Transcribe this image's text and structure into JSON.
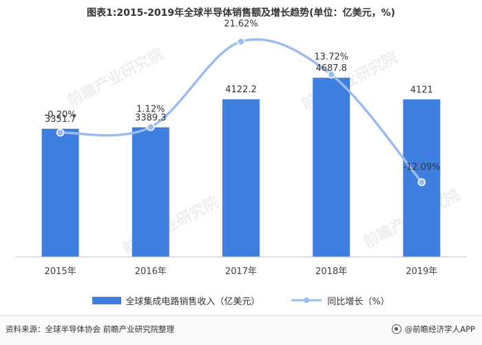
{
  "title": "图表1:2015-2019年全球半导体销售额及增长趋势(单位：亿美元，%)",
  "chart_data": {
    "type": "bar",
    "categories": [
      "2015年",
      "2016年",
      "2017年",
      "2018年",
      "2019年"
    ],
    "series": [
      {
        "name": "全球集成电路销售收入（亿美元）",
        "kind": "bar",
        "values": [
          3351.7,
          3389.3,
          4122.2,
          4687.8,
          4121
        ],
        "labels": [
          "3351.7",
          "3389.3",
          "4122.2",
          "4687.8",
          "4121"
        ],
        "color": "#3f7fe0"
      },
      {
        "name": "同比增长（%）",
        "kind": "line",
        "smooth": true,
        "values": [
          -0.2,
          1.12,
          21.62,
          13.72,
          -12.09
        ],
        "labels": [
          "-0.20%",
          "1.12%",
          "21.62%",
          "13.72%",
          "-12.09%"
        ],
        "color": "#9bbcf0"
      }
    ],
    "y_range": [
      0,
      6000
    ],
    "y2_range": [
      -30,
      25
    ],
    "grid": false,
    "legend_position": "bottom"
  },
  "footer": {
    "source": "资料来源：全球半导体协会 前瞻产业研究院整理",
    "brand": "@前瞻经济学人APP"
  },
  "watermark_text": "前瞻产业研究院"
}
